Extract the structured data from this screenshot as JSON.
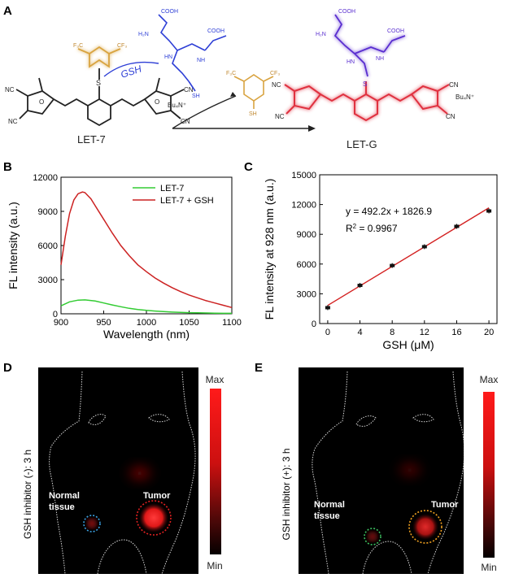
{
  "panels": {
    "a": "A",
    "b": "B",
    "c": "C",
    "d": "D",
    "e": "E"
  },
  "chem": {
    "cooh1": "COOH",
    "nh2": "H₂N",
    "hn": "HN",
    "cooh2": "COOH",
    "nh": "NH",
    "sh": "SH",
    "o": "O",
    "gsh": "GSH",
    "cf3": "F₃C",
    "cf3b": "CF₃",
    "s": "S",
    "nc": "NC",
    "cn": "CN",
    "bu4n": "Bu₄N⁺",
    "sh_thiol": "SH",
    "let7": "LET-7",
    "letg": "LET-G"
  },
  "chart_b": {
    "type": "line",
    "xlabel": "Wavelength (nm)",
    "ylabel": "FL intensity (a.u.)",
    "xlim": [
      900,
      1100
    ],
    "ylim": [
      0,
      12000
    ],
    "xticks": [
      900,
      950,
      1000,
      1050,
      1100
    ],
    "yticks": [
      0,
      3000,
      6000,
      9000,
      12000
    ],
    "legend_position": "top-right",
    "series": [
      {
        "name": "LET-7",
        "color": "#33cc33",
        "x": [
          900,
          910,
          920,
          928,
          940,
          950,
          960,
          970,
          980,
          990,
          1000,
          1010,
          1020,
          1030,
          1040,
          1050,
          1060,
          1070,
          1080,
          1090,
          1100
        ],
        "y": [
          700,
          1050,
          1200,
          1220,
          1120,
          950,
          780,
          620,
          480,
          380,
          300,
          240,
          190,
          150,
          120,
          100,
          85,
          70,
          55,
          45,
          40
        ]
      },
      {
        "name": "LET-7 + GSH",
        "color": "#cc2222",
        "x": [
          900,
          905,
          910,
          915,
          920,
          925,
          928,
          935,
          940,
          950,
          960,
          970,
          980,
          990,
          1000,
          1010,
          1020,
          1030,
          1040,
          1050,
          1060,
          1070,
          1080,
          1090,
          1100
        ],
        "y": [
          4300,
          6800,
          8800,
          10000,
          10550,
          10700,
          10650,
          10100,
          9500,
          8300,
          7100,
          6000,
          5100,
          4300,
          3700,
          3150,
          2700,
          2300,
          1950,
          1650,
          1400,
          1150,
          950,
          750,
          550
        ]
      }
    ]
  },
  "chart_c": {
    "type": "scatter",
    "xlabel": "GSH (μM)",
    "ylabel": "FL intensity at 928 nm (a.u.)",
    "xlim": [
      -1,
      21
    ],
    "ylim": [
      0,
      15000
    ],
    "xticks": [
      0,
      4,
      8,
      12,
      16,
      20
    ],
    "yticks": [
      0,
      3000,
      6000,
      9000,
      12000,
      15000
    ],
    "equation": "y = 492.2x + 1826.9",
    "r2_prefix": "R",
    "r2_sup": "2",
    "r2_value": " = 0.9967",
    "fit": {
      "slope": 492.2,
      "intercept": 1826.9
    },
    "points": {
      "x": [
        0,
        4,
        8,
        12,
        16,
        20
      ],
      "y": [
        1600,
        3850,
        5850,
        7750,
        9800,
        11350
      ]
    }
  },
  "image_d": {
    "ylabel": "GSH inhibitor (-): 3 h",
    "normal_label": [
      "Normal",
      "tissue"
    ],
    "tumor_label": "Tumor",
    "scale_max": "Max",
    "scale_min": "Min"
  },
  "image_e": {
    "ylabel": "GSH inhibitor (+): 3 h",
    "normal_label": [
      "Normal",
      "tissue"
    ],
    "tumor_label": "Tumor",
    "scale_max": "Max",
    "scale_min": "Min"
  }
}
